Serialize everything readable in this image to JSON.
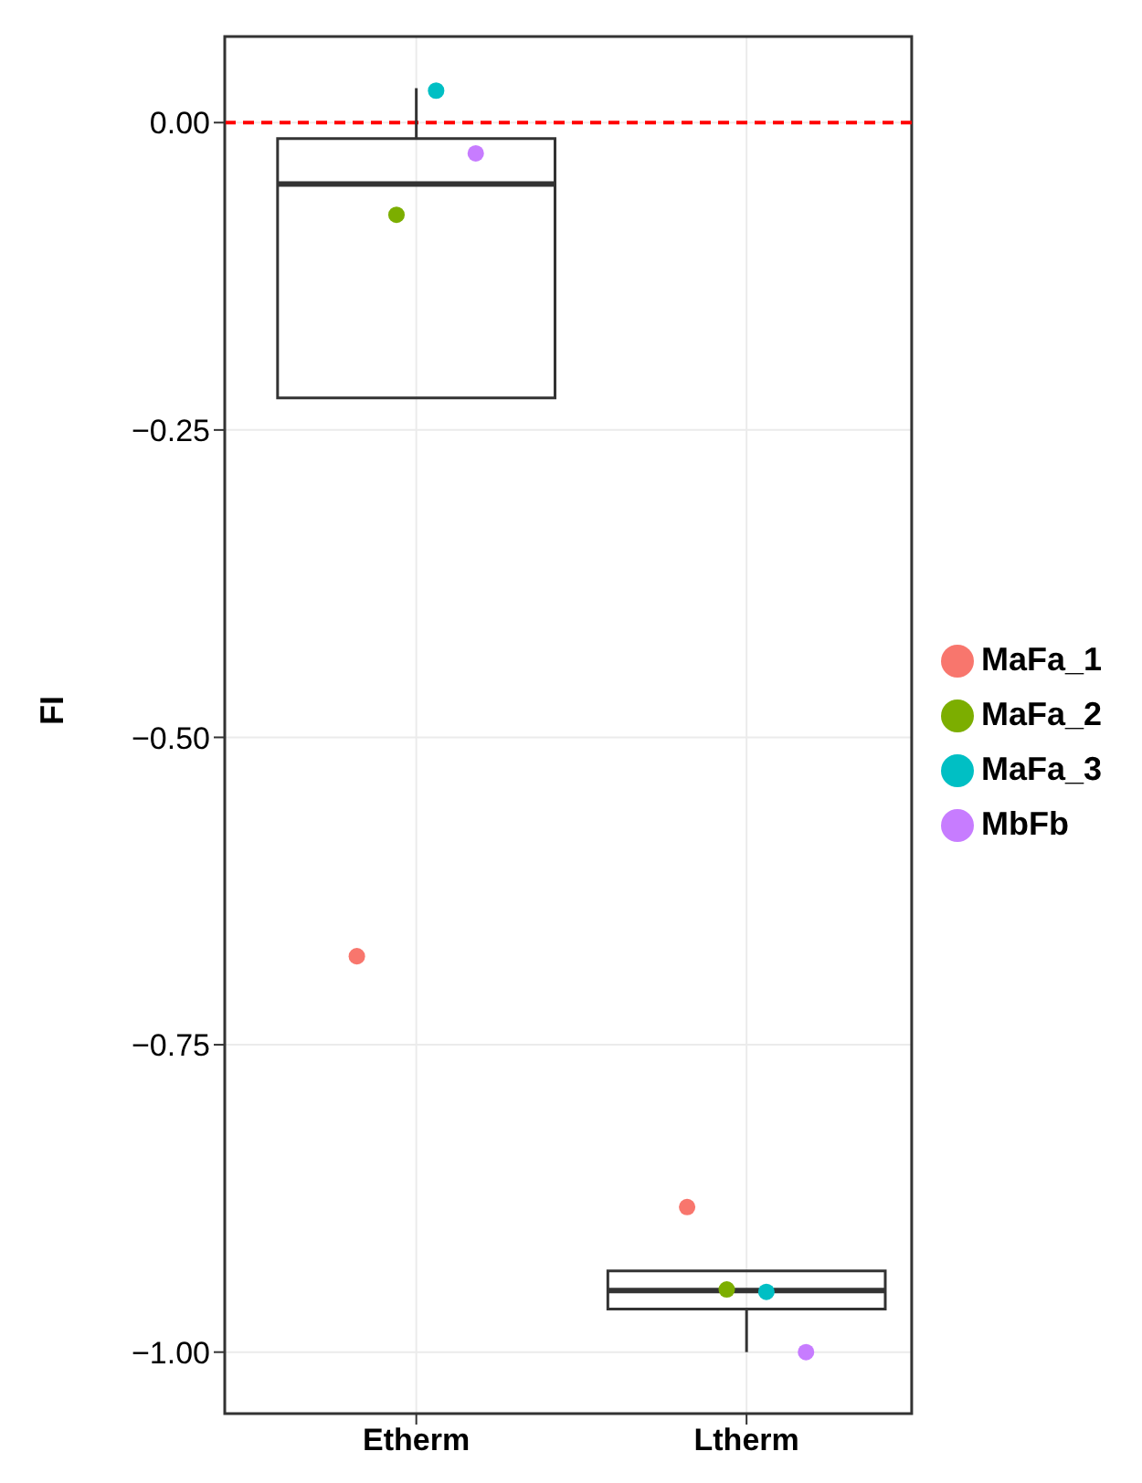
{
  "chart_data": {
    "type": "box",
    "ylabel": "FI",
    "categories": [
      "Etherm",
      "Ltherm"
    ],
    "boxes": [
      {
        "low": -0.224,
        "q1": -0.224,
        "median": -0.05,
        "q3": -0.013,
        "high": 0.028
      },
      {
        "low": -1.0,
        "q1": -0.965,
        "median": -0.95,
        "q3": -0.934,
        "high": -0.934
      }
    ],
    "series": [
      {
        "type": "scatter",
        "name": "MaFa_1",
        "color": "#f8766d",
        "x": [
          "Etherm",
          "Ltherm"
        ],
        "values": [
          -0.678,
          -0.882
        ]
      },
      {
        "type": "scatter",
        "name": "MaFa_2",
        "color": "#7cae00",
        "x": [
          "Etherm",
          "Ltherm"
        ],
        "values": [
          -0.075,
          -0.949
        ]
      },
      {
        "type": "scatter",
        "name": "MaFa_3",
        "color": "#00bfc4",
        "x": [
          "Etherm",
          "Ltherm"
        ],
        "values": [
          0.026,
          -0.951
        ]
      },
      {
        "type": "scatter",
        "name": "MbFb",
        "color": "#c77cff",
        "x": [
          "Etherm",
          "Ltherm"
        ],
        "values": [
          -0.025,
          -1.0
        ]
      }
    ],
    "ylim": [
      -1.05,
      0.07
    ],
    "yticks": [
      {
        "value": 0,
        "label": "0.00"
      },
      {
        "value": -0.25,
        "label": "−0.25"
      },
      {
        "value": -0.5,
        "label": "−0.50"
      },
      {
        "value": -0.75,
        "label": "−0.75"
      },
      {
        "value": -1,
        "label": "−1.00"
      }
    ],
    "ref_lines": [
      {
        "axis": "y",
        "value": 0,
        "color": "#ff0000",
        "line_style": "dashed"
      }
    ],
    "grid": true,
    "legend": "right",
    "marker": "circle"
  }
}
